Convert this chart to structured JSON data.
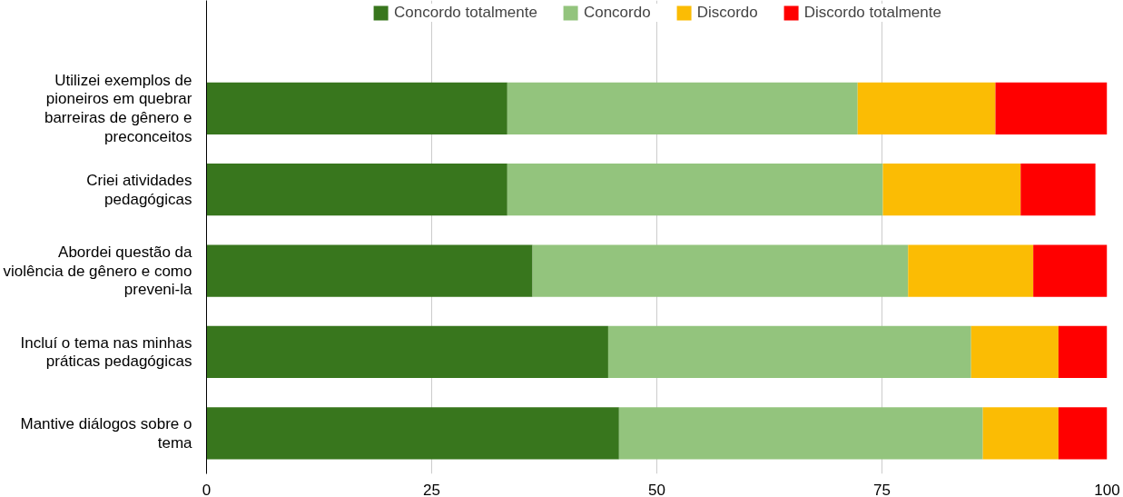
{
  "chart_data": {
    "type": "bar",
    "orientation": "horizontal",
    "stacked": true,
    "categories": [
      "Utilizei exemplos de pioneiros em quebrar barreiras de gênero e preconceitos",
      "Criei atividades pedagógicas",
      "Abordei questão da violência de gênero e como preveni-la",
      "Incluí o tema nas minhas práticas pedagógicas",
      "Mantive diálogos sobre o tema"
    ],
    "series": [
      {
        "name": "Concordo totalmente",
        "color": "#38761d",
        "values": [
          33.4,
          33.4,
          36.2,
          44.6,
          45.8
        ]
      },
      {
        "name": "Concordo",
        "color": "#93c47d",
        "values": [
          38.9,
          41.7,
          41.7,
          40.3,
          40.4
        ]
      },
      {
        "name": "Discordo",
        "color": "#fbbc04",
        "values": [
          15.3,
          15.3,
          13.9,
          9.7,
          8.4
        ]
      },
      {
        "name": "Discordo totalmente",
        "color": "#ff0000",
        "values": [
          12.4,
          8.3,
          8.2,
          5.4,
          5.4
        ]
      }
    ],
    "xlim": [
      0,
      100
    ],
    "xticks": [
      0,
      25,
      50,
      75,
      100
    ],
    "grid": "x",
    "legend": "top"
  }
}
